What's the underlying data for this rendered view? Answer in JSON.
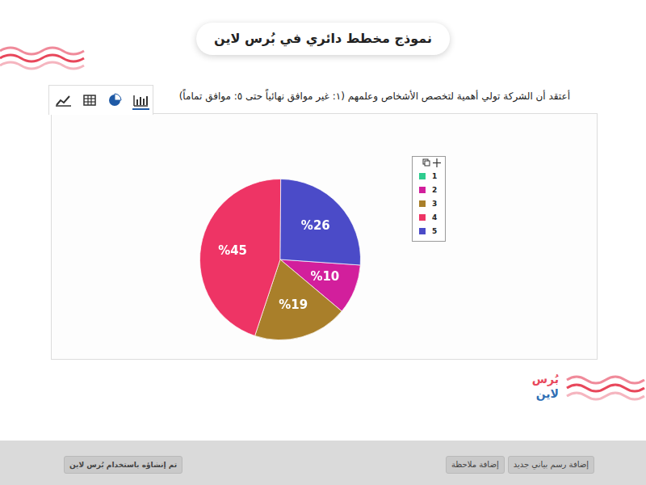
{
  "page": {
    "header": {
      "title": "نموذج مخطط دائري في بُرس لاين"
    },
    "logo": {
      "part1": "بُرس",
      "part2": "لاين"
    },
    "buttons": [
      "إضافة رسم بياني جديد",
      "إضافة ملاحظة"
    ],
    "credit": "تم إنشاؤه باستخدام بُرس لاين"
  },
  "chart_data": {
    "type": "pie",
    "title": "أعتقد أن الشركة تولي أهمية لتخصص الأشخاص وعلمهم (١: غير موافق نهائياً حتى ٥: موافق تماماً)",
    "categories": [
      "1",
      "2",
      "3",
      "4",
      "5"
    ],
    "values": [
      0,
      10,
      19,
      45,
      26
    ],
    "value_labels": [
      null,
      "%10",
      "%19",
      "%45",
      "%26"
    ],
    "colors": [
      "#2ecc8f",
      "#d21f9c",
      "#a97f2a",
      "#ee3465",
      "#4b4bc8"
    ],
    "data_labels": true,
    "legend": "right"
  }
}
